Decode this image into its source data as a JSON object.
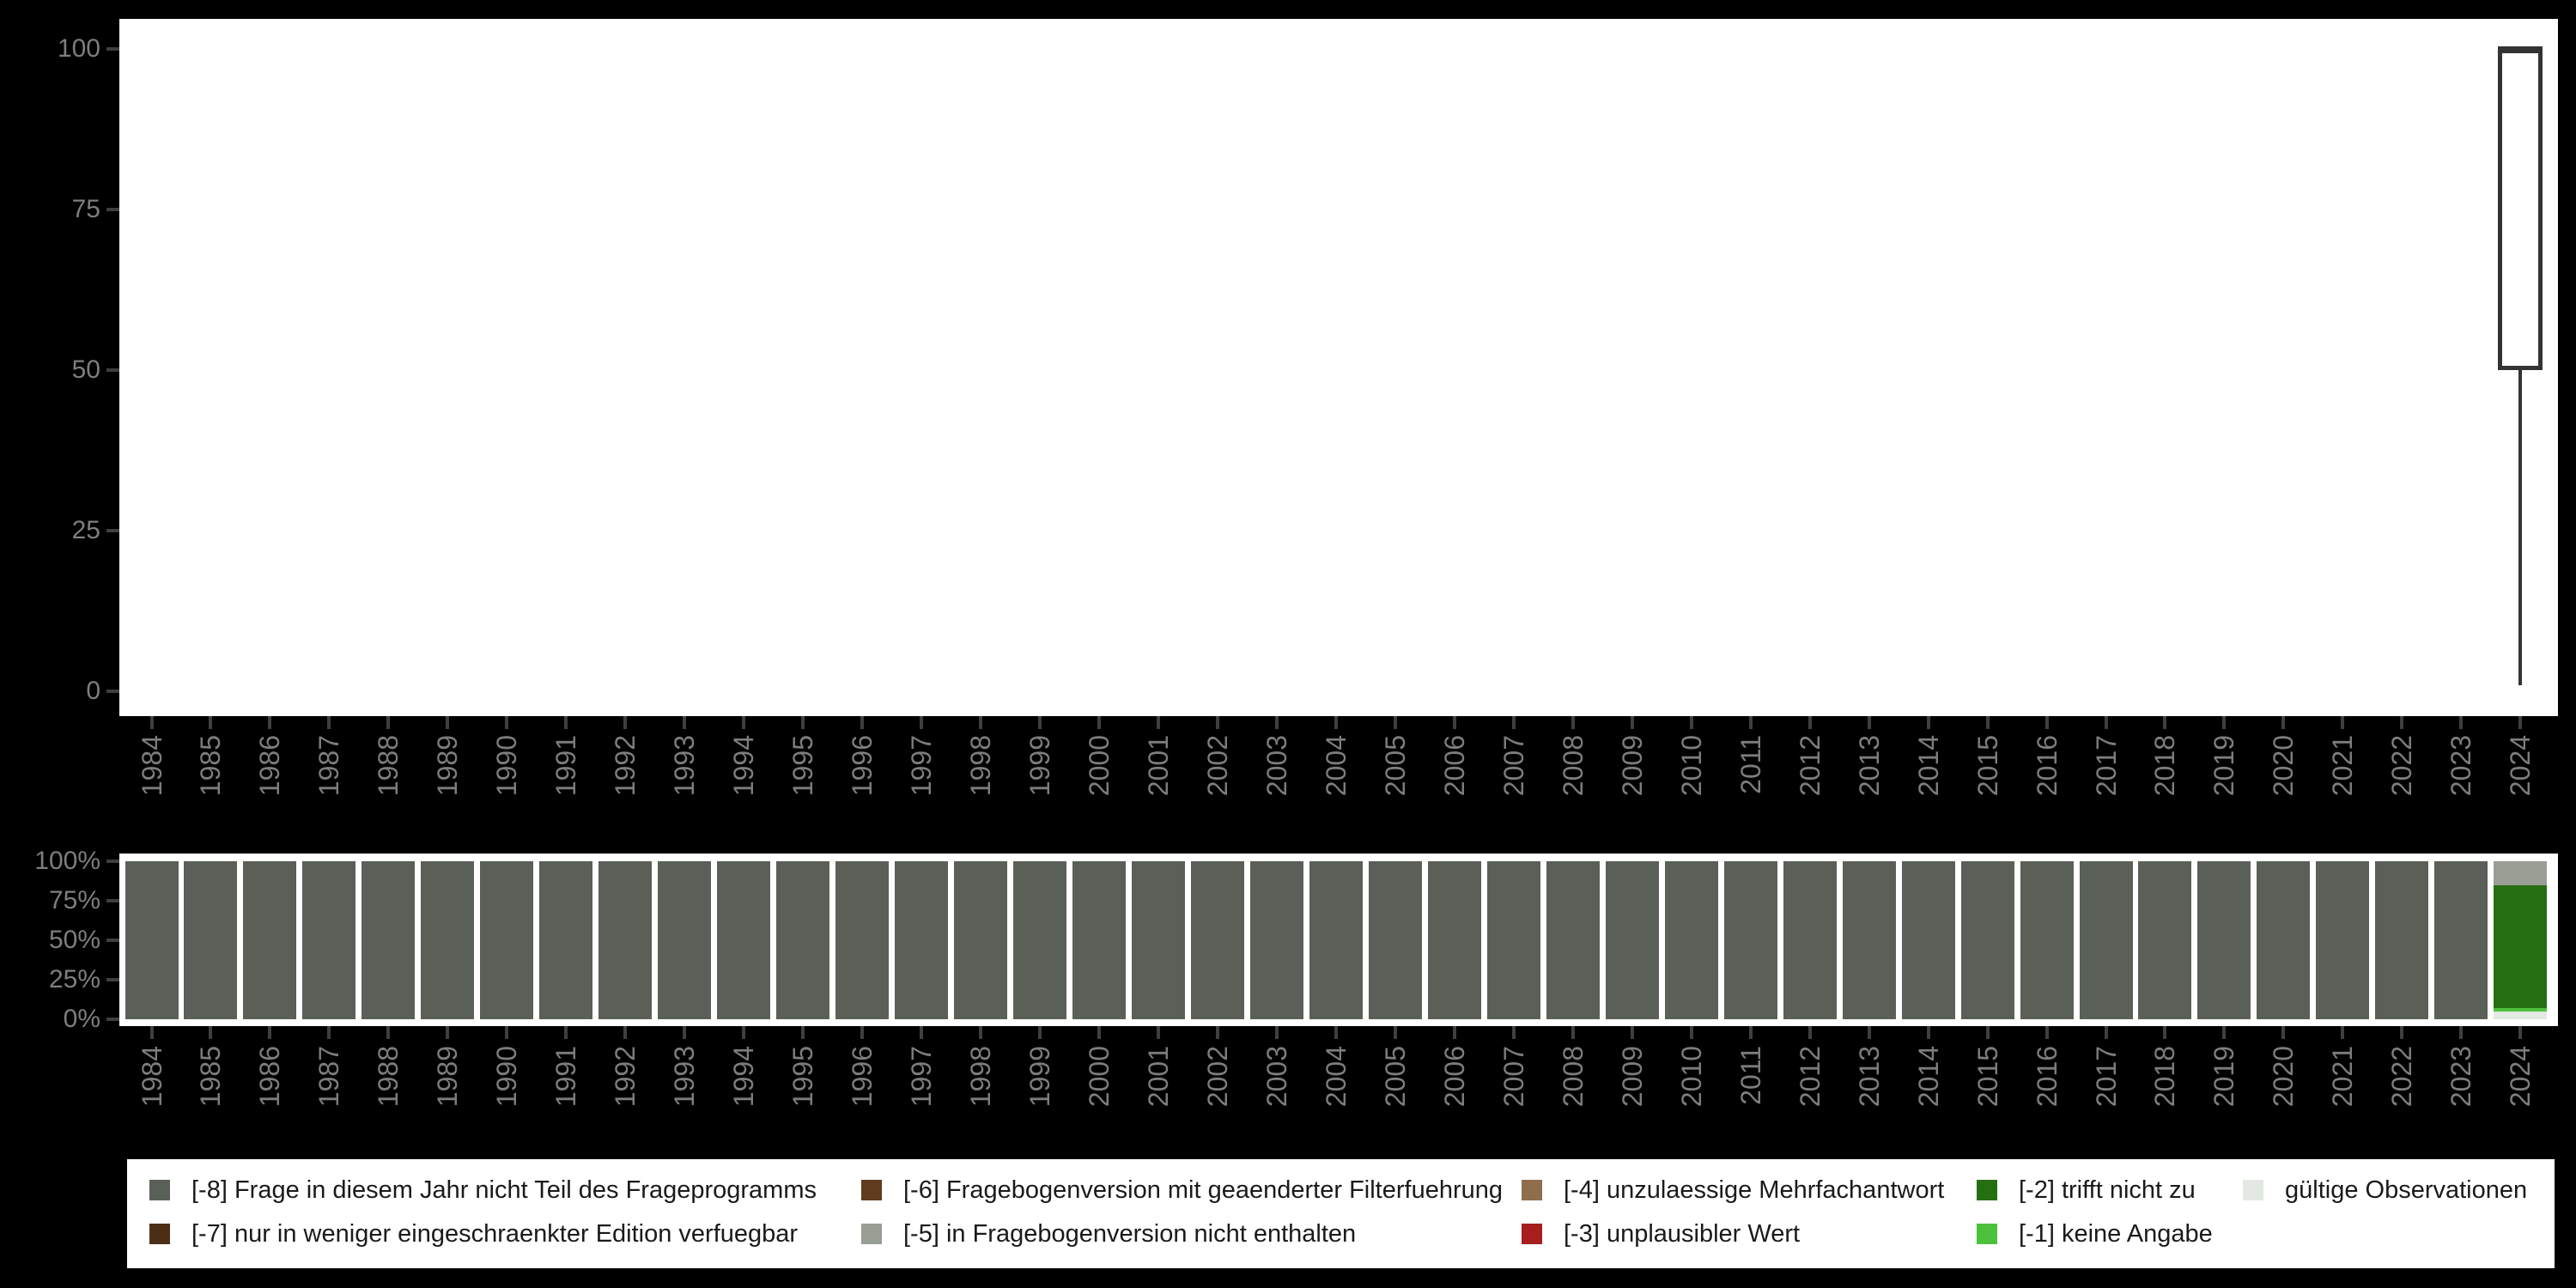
{
  "canvas": {
    "background": "#000000"
  },
  "chart_data": [
    {
      "type": "boxplot",
      "title": "",
      "xlabel": "",
      "ylabel": "",
      "ylim": [
        0,
        100
      ],
      "yticks": [
        "0",
        "25",
        "50",
        "75",
        "100"
      ],
      "categories": [
        "1984",
        "1985",
        "1986",
        "1987",
        "1988",
        "1989",
        "1990",
        "1991",
        "1992",
        "1993",
        "1994",
        "1995",
        "1996",
        "1997",
        "1998",
        "1999",
        "2000",
        "2001",
        "2002",
        "2003",
        "2004",
        "2005",
        "2006",
        "2007",
        "2008",
        "2009",
        "2010",
        "2011",
        "2012",
        "2013",
        "2014",
        "2015",
        "2016",
        "2017",
        "2018",
        "2019",
        "2020",
        "2021",
        "2022",
        "2023",
        "2024"
      ],
      "boxes": [
        {
          "category": "2024",
          "min": 1,
          "q1": 50,
          "median": 100,
          "q3": 100,
          "max": 100
        }
      ],
      "note": "all years except 2024 have no drawn data"
    },
    {
      "type": "bar",
      "stacked": true,
      "unit": "percent",
      "title": "",
      "xlabel": "",
      "ylabel": "",
      "ylim": [
        0,
        100
      ],
      "yticks": [
        "0%",
        "25%",
        "50%",
        "75%",
        "100%"
      ],
      "categories": [
        "1984",
        "1985",
        "1986",
        "1987",
        "1988",
        "1989",
        "1990",
        "1991",
        "1992",
        "1993",
        "1994",
        "1995",
        "1996",
        "1997",
        "1998",
        "1999",
        "2000",
        "2001",
        "2002",
        "2003",
        "2004",
        "2005",
        "2006",
        "2007",
        "2008",
        "2009",
        "2010",
        "2011",
        "2012",
        "2013",
        "2014",
        "2015",
        "2016",
        "2017",
        "2018",
        "2019",
        "2020",
        "2021",
        "2022",
        "2023",
        "2024"
      ],
      "series": [
        {
          "code": "m8",
          "name": "[-8] Frage in diesem Jahr nicht Teil des Frageprogramms",
          "values": [
            100,
            100,
            100,
            100,
            100,
            100,
            100,
            100,
            100,
            100,
            100,
            100,
            100,
            100,
            100,
            100,
            100,
            100,
            100,
            100,
            100,
            100,
            100,
            100,
            100,
            100,
            100,
            100,
            100,
            100,
            100,
            100,
            100,
            100,
            100,
            100,
            100,
            100,
            100,
            100,
            0
          ]
        },
        {
          "code": "m5",
          "name": "[-5] in Fragebogenversion nicht enthalten",
          "values": [
            0,
            0,
            0,
            0,
            0,
            0,
            0,
            0,
            0,
            0,
            0,
            0,
            0,
            0,
            0,
            0,
            0,
            0,
            0,
            0,
            0,
            0,
            0,
            0,
            0,
            0,
            0,
            0,
            0,
            0,
            0,
            0,
            0,
            0,
            0,
            0,
            0,
            0,
            0,
            0,
            15
          ]
        },
        {
          "code": "m2",
          "name": "[-2] trifft nicht zu",
          "values": [
            0,
            0,
            0,
            0,
            0,
            0,
            0,
            0,
            0,
            0,
            0,
            0,
            0,
            0,
            0,
            0,
            0,
            0,
            0,
            0,
            0,
            0,
            0,
            0,
            0,
            0,
            0,
            0,
            0,
            0,
            0,
            0,
            0,
            0,
            0,
            0,
            0,
            0,
            0,
            0,
            78
          ]
        },
        {
          "code": "m1",
          "name": "[-1] keine Angabe",
          "values": [
            0,
            0,
            0,
            0,
            0,
            0,
            0,
            0,
            0,
            0,
            0,
            0,
            0,
            0,
            0,
            0,
            0,
            0,
            0,
            0,
            0,
            0,
            0,
            0,
            0,
            0,
            0,
            0,
            0,
            0,
            0,
            0,
            0,
            0,
            0,
            0,
            0,
            0,
            0,
            0,
            2
          ]
        },
        {
          "code": "valid",
          "name": "gültige Observationen",
          "values": [
            0,
            0,
            0,
            0,
            0,
            0,
            0,
            0,
            0,
            0,
            0,
            0,
            0,
            0,
            0,
            0,
            0,
            0,
            0,
            0,
            0,
            0,
            0,
            0,
            0,
            0,
            0,
            0,
            0,
            0,
            0,
            0,
            0,
            0,
            0,
            0,
            0,
            0,
            0,
            0,
            5
          ]
        }
      ]
    }
  ],
  "colors": {
    "m8": "#5A6058",
    "m7": "#4D2F17",
    "m6": "#5F3C1E",
    "m5": "#999E95",
    "m4": "#8E6E4C",
    "m3": "#A61E1D",
    "m2": "#256E12",
    "m1": "#4CC13C",
    "valid": "#E4E8E2",
    "box_border": "#333333",
    "tick": "#3f3f3f",
    "axis_text": "#7e7e7e",
    "legend_text": "#1a1a1a",
    "panel_bg": "#ffffff"
  },
  "legend": {
    "rows": [
      [
        {
          "code": "m8",
          "label": "[-8] Frage in diesem Jahr nicht Teil des Frageprogramms"
        },
        {
          "code": "m6",
          "label": "[-6] Fragebogenversion mit geaenderter Filterfuehrung"
        },
        {
          "code": "m4",
          "label": "[-4] unzulaessige Mehrfachantwort"
        },
        {
          "code": "m2",
          "label": "[-2] trifft nicht zu"
        },
        {
          "code": "valid",
          "label": "gültige Observationen"
        }
      ],
      [
        {
          "code": "m7",
          "label": "[-7] nur in weniger eingeschraenkter Edition verfuegbar"
        },
        {
          "code": "m5",
          "label": "[-5] in Fragebogenversion nicht enthalten"
        },
        {
          "code": "m3",
          "label": "[-3] unplausibler Wert"
        },
        {
          "code": "m1",
          "label": "[-1] keine Angabe"
        }
      ]
    ]
  }
}
